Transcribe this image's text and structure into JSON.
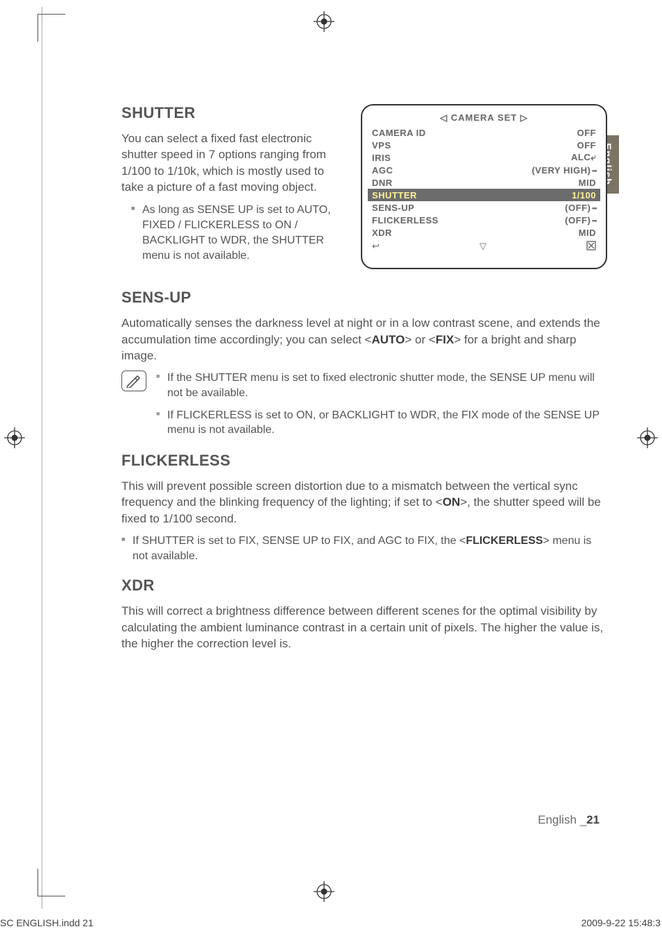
{
  "lang_tab": "English",
  "sections": {
    "shutter": {
      "title": "SHUTTER",
      "body": "You can select a fixed fast electronic shutter speed in 7 options ranging from 1/100 to 1/10k, which is mostly used to take a picture of a fast moving object.",
      "bullet1": "As long as SENSE UP is set to AUTO, FIXED / FLICKERLESS to ON / BACKLIGHT to WDR, the SHUTTER menu is not available."
    },
    "sensup": {
      "title": "SENS-UP",
      "body_pre": "Automatically senses the darkness level at night or in a low contrast scene, and extends the accumulation time accordingly; you can select <",
      "auto": "AUTO",
      "mid": "> or <",
      "fix": "FIX",
      "body_post": "> for a bright and sharp image.",
      "note1": "If the SHUTTER menu is set to fixed electronic shutter mode, the SENSE UP menu will not be available.",
      "note2": "If FLICKERLESS is set to ON, or BACKLIGHT to WDR, the FIX mode of the SENSE UP menu is not available."
    },
    "flickerless": {
      "title": "FLICKERLESS",
      "body_pre": "This will prevent possible screen distortion due to a mismatch between the vertical sync frequency and the blinking frequency of the lighting; if set to <",
      "on": "ON",
      "body_post": ">, the shutter speed will be fixed to 1/100 second.",
      "bullet_pre": "If SHUTTER is set to FIX, SENSE UP to FIX, and AGC to FIX, the <",
      "fl": "FLICKERLESS",
      "bullet_post": "> menu is not available."
    },
    "xdr": {
      "title": "XDR",
      "body": "This will correct a brightness difference between different scenes for the optimal visibility by calculating the ambient luminance contrast in a certain unit of pixels. The higher the value is, the higher the correction level is."
    }
  },
  "osd": {
    "title": "◁  CAMERA SET  ▷",
    "rows": [
      {
        "label": "CAMERA ID",
        "value": "OFF",
        "dots": ""
      },
      {
        "label": "VPS",
        "value": "OFF",
        "dots": ""
      },
      {
        "label": "IRIS",
        "value": "ALC⤶",
        "dots": ""
      },
      {
        "label": "AGC",
        "value": "(VERY HIGH)",
        "dots": " ┅"
      },
      {
        "label": "DNR",
        "value": "MID",
        "dots": ""
      },
      {
        "label": "SHUTTER",
        "value": "1/100",
        "dots": "",
        "highlight": true
      },
      {
        "label": "SENS-UP",
        "value": "(OFF)",
        "dots": " ┅"
      },
      {
        "label": "FLICKERLESS",
        "value": "(OFF)",
        "dots": " ┅"
      },
      {
        "label": "XDR",
        "value": "MID",
        "dots": ""
      }
    ],
    "back": "↩",
    "down": "▽",
    "close": "�ये"
  },
  "footer": {
    "lang": "English _",
    "page": "21"
  },
  "imprint": {
    "left": "SC ENGLISH.indd   21",
    "right": "2009-9-22   15:48:3"
  },
  "colors": {
    "text": "#555555",
    "highlight_bg": "#6c6c6c",
    "highlight_fg": "#fff29a",
    "tab_bg": "#7b7464"
  }
}
